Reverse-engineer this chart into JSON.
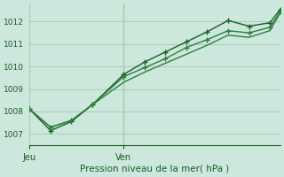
{
  "bg_color": "#cce8dc",
  "grid_color": "#aaccb8",
  "line_color_dark": "#1a5c2a",
  "line_color_med": "#2e7d3e",
  "xlabel": "Pression niveau de la mer( hPa )",
  "ylim": [
    1006.5,
    1012.8
  ],
  "yticks": [
    1007,
    1008,
    1009,
    1010,
    1011,
    1012
  ],
  "day_labels": [
    "Jeu",
    "Ven"
  ],
  "jeu_x": 0,
  "ven_x": 4.5,
  "xlim": [
    0,
    12
  ],
  "series1_x": [
    0,
    1,
    2,
    3,
    4.5,
    5.5,
    6.5,
    7.5,
    8.5,
    9.5,
    10.5,
    11.5,
    12
  ],
  "series1_y": [
    1008.1,
    1007.15,
    1007.55,
    1008.3,
    1009.65,
    1010.2,
    1010.65,
    1011.1,
    1011.55,
    1012.05,
    1011.8,
    1011.95,
    1012.55
  ],
  "series2_x": [
    0,
    1,
    2,
    3,
    4.5,
    5.5,
    6.5,
    7.5,
    8.5,
    9.5,
    10.5,
    11.5,
    12
  ],
  "series2_y": [
    1008.1,
    1007.3,
    1007.6,
    1008.3,
    1009.55,
    1009.95,
    1010.35,
    1010.85,
    1011.2,
    1011.6,
    1011.5,
    1011.75,
    1012.45
  ],
  "series3_x": [
    0,
    1,
    2,
    3,
    4.5,
    5.5,
    6.5,
    7.5,
    8.5,
    9.5,
    10.5,
    11.5,
    12
  ],
  "series3_y": [
    1008.1,
    1007.3,
    1007.6,
    1008.3,
    1009.3,
    1009.75,
    1010.15,
    1010.55,
    1010.95,
    1011.4,
    1011.3,
    1011.6,
    1012.4
  ],
  "figsize": [
    3.2,
    2.0
  ],
  "dpi": 100
}
